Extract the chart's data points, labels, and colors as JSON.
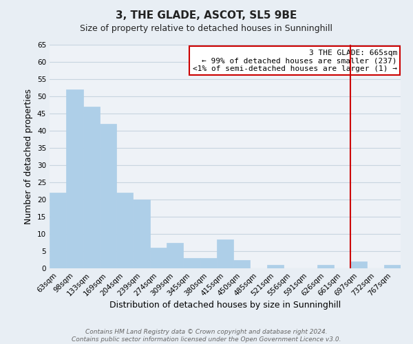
{
  "title": "3, THE GLADE, ASCOT, SL5 9BE",
  "subtitle": "Size of property relative to detached houses in Sunninghill",
  "xlabel": "Distribution of detached houses by size in Sunninghill",
  "ylabel": "Number of detached properties",
  "bar_color": "#aecfe8",
  "bar_edge_color": "#aecfe8",
  "categories": [
    "63sqm",
    "98sqm",
    "133sqm",
    "169sqm",
    "204sqm",
    "239sqm",
    "274sqm",
    "309sqm",
    "345sqm",
    "380sqm",
    "415sqm",
    "450sqm",
    "485sqm",
    "521sqm",
    "556sqm",
    "591sqm",
    "626sqm",
    "661sqm",
    "697sqm",
    "732sqm",
    "767sqm"
  ],
  "values": [
    22,
    52,
    47,
    42,
    22,
    20,
    6,
    7.5,
    3,
    3,
    8.5,
    2.5,
    0,
    1,
    0,
    0,
    1,
    0,
    2,
    0,
    1
  ],
  "ylim": [
    0,
    65
  ],
  "yticks": [
    0,
    5,
    10,
    15,
    20,
    25,
    30,
    35,
    40,
    45,
    50,
    55,
    60,
    65
  ],
  "vline_color": "#cc0000",
  "vline_x_index": 17,
  "annotation_title": "3 THE GLADE: 665sqm",
  "annotation_line1": "← 99% of detached houses are smaller (237)",
  "annotation_line2": "<1% of semi-detached houses are larger (1) →",
  "annotation_box_color": "#ffffff",
  "annotation_box_edge": "#cc0000",
  "footer1": "Contains HM Land Registry data © Crown copyright and database right 2024.",
  "footer2": "Contains public sector information licensed under the Open Government Licence v3.0.",
  "background_color": "#e8eef4",
  "plot_background": "#eef2f7",
  "grid_color": "#c8d4e0",
  "title_fontsize": 11,
  "subtitle_fontsize": 9,
  "axis_label_fontsize": 9,
  "tick_fontsize": 7.5,
  "annotation_fontsize": 8,
  "footer_fontsize": 6.5
}
